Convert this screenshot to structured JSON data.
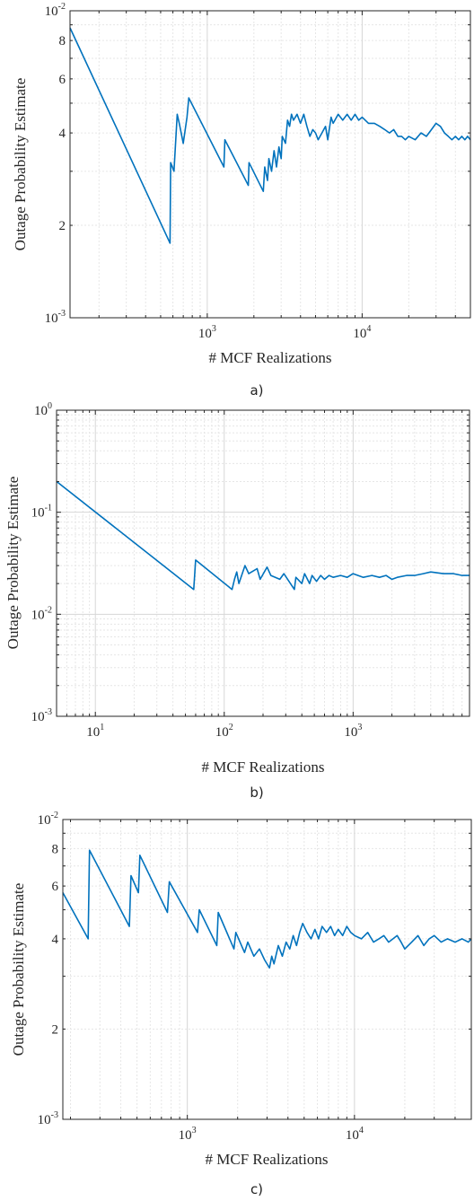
{
  "chart_data": [
    {
      "type": "line",
      "scale": "loglog",
      "caption": "a)",
      "xlabel": "# MCF Realizations",
      "ylabel": "Outage Probability Estimate",
      "xlim": [
        130,
        50000
      ],
      "ylim": [
        0.001,
        0.01
      ],
      "x_ticks": [
        {
          "v": 1000,
          "base": "10",
          "exp": "3"
        },
        {
          "v": 10000,
          "base": "10",
          "exp": "4"
        }
      ],
      "y_ticks": [
        {
          "v": 0.001,
          "base": "10",
          "exp": "-3"
        },
        {
          "v": 0.002,
          "base": "2",
          "exp": ""
        },
        {
          "v": 0.004,
          "base": "4",
          "exp": ""
        },
        {
          "v": 0.006,
          "base": "6",
          "exp": ""
        },
        {
          "v": 0.008,
          "base": "8",
          "exp": ""
        },
        {
          "v": 0.01,
          "base": "10",
          "exp": "-2"
        }
      ],
      "grid": true,
      "series": [
        {
          "color": "#0072bd",
          "x": [
            130,
            575,
            580,
            610,
            640,
            660,
            700,
            740,
            760,
            1280,
            1300,
            1840,
            1860,
            2300,
            2350,
            2450,
            2500,
            2600,
            2700,
            2800,
            2900,
            3000,
            3050,
            3200,
            3300,
            3400,
            3500,
            3600,
            3800,
            4000,
            4200,
            4400,
            4600,
            4800,
            5000,
            5200,
            5500,
            5800,
            6000,
            6300,
            6500,
            7000,
            7500,
            8000,
            8500,
            9000,
            9500,
            10000,
            11000,
            12000,
            13000,
            14000,
            15000,
            16000,
            17000,
            18000,
            19000,
            20000,
            22000,
            24000,
            26000,
            28000,
            30000,
            32000,
            34000,
            36000,
            38000,
            40000,
            42000,
            44000,
            46000,
            48000,
            50000
          ],
          "y": [
            0.0088,
            0.00175,
            0.0032,
            0.003,
            0.0046,
            0.0043,
            0.0037,
            0.0045,
            0.0052,
            0.0031,
            0.0038,
            0.0027,
            0.0032,
            0.00258,
            0.0031,
            0.0028,
            0.0033,
            0.003,
            0.0035,
            0.0031,
            0.0036,
            0.0033,
            0.0039,
            0.0037,
            0.0044,
            0.0042,
            0.0046,
            0.0044,
            0.0046,
            0.0043,
            0.0046,
            0.0042,
            0.0039,
            0.0041,
            0.004,
            0.0038,
            0.004,
            0.0042,
            0.0038,
            0.0045,
            0.0043,
            0.0046,
            0.0044,
            0.0046,
            0.0044,
            0.0046,
            0.0044,
            0.0045,
            0.0043,
            0.0043,
            0.0042,
            0.0041,
            0.004,
            0.0041,
            0.0039,
            0.0039,
            0.0038,
            0.0039,
            0.0038,
            0.004,
            0.0039,
            0.0041,
            0.0043,
            0.0042,
            0.004,
            0.0039,
            0.0038,
            0.0039,
            0.0038,
            0.0039,
            0.0038,
            0.0039,
            0.0038
          ]
        }
      ]
    },
    {
      "type": "line",
      "scale": "loglog",
      "caption": "b)",
      "xlabel": "# MCF Realizations",
      "ylabel": "Outage Probability Estimate",
      "xlim": [
        5,
        8000
      ],
      "ylim": [
        0.001,
        1
      ],
      "x_ticks": [
        {
          "v": 10,
          "base": "10",
          "exp": "1"
        },
        {
          "v": 100,
          "base": "10",
          "exp": "2"
        },
        {
          "v": 1000,
          "base": "10",
          "exp": "3"
        }
      ],
      "y_ticks": [
        {
          "v": 0.001,
          "base": "10",
          "exp": "-3"
        },
        {
          "v": 0.01,
          "base": "10",
          "exp": "-2"
        },
        {
          "v": 0.1,
          "base": "10",
          "exp": "-1"
        },
        {
          "v": 1,
          "base": "10",
          "exp": "0"
        }
      ],
      "grid": true,
      "series": [
        {
          "color": "#0072bd",
          "x": [
            5,
            58,
            60,
            115,
            120,
            125,
            130,
            145,
            155,
            180,
            190,
            215,
            230,
            270,
            290,
            350,
            360,
            400,
            420,
            460,
            480,
            520,
            560,
            600,
            650,
            700,
            800,
            900,
            1000,
            1200,
            1400,
            1600,
            1800,
            2000,
            2200,
            2600,
            3000,
            3500,
            4000,
            5000,
            6000,
            7000,
            8000
          ],
          "y": [
            0.2,
            0.0175,
            0.034,
            0.0175,
            0.022,
            0.026,
            0.02,
            0.03,
            0.025,
            0.028,
            0.022,
            0.029,
            0.024,
            0.022,
            0.025,
            0.0175,
            0.023,
            0.02,
            0.025,
            0.02,
            0.024,
            0.021,
            0.024,
            0.022,
            0.024,
            0.023,
            0.024,
            0.023,
            0.025,
            0.023,
            0.024,
            0.023,
            0.024,
            0.022,
            0.023,
            0.024,
            0.024,
            0.025,
            0.026,
            0.025,
            0.025,
            0.024,
            0.024
          ]
        }
      ]
    },
    {
      "type": "line",
      "scale": "loglog",
      "caption": "c)",
      "xlabel": "# MCF Realizations",
      "ylabel": "Outage Probability Estimate",
      "xlim": [
        180,
        50000
      ],
      "ylim": [
        0.001,
        0.01
      ],
      "x_ticks": [
        {
          "v": 1000,
          "base": "10",
          "exp": "3"
        },
        {
          "v": 10000,
          "base": "10",
          "exp": "4"
        }
      ],
      "y_ticks": [
        {
          "v": 0.001,
          "base": "10",
          "exp": "-3"
        },
        {
          "v": 0.002,
          "base": "2",
          "exp": ""
        },
        {
          "v": 0.004,
          "base": "4",
          "exp": ""
        },
        {
          "v": 0.006,
          "base": "6",
          "exp": ""
        },
        {
          "v": 0.008,
          "base": "8",
          "exp": ""
        },
        {
          "v": 0.01,
          "base": "10",
          "exp": "-2"
        }
      ],
      "grid": true,
      "series": [
        {
          "color": "#0072bd",
          "x": [
            180,
            255,
            260,
            450,
            460,
            510,
            520,
            760,
            780,
            1150,
            1180,
            1500,
            1530,
            1900,
            1950,
            2200,
            2300,
            2500,
            2700,
            2900,
            3100,
            3200,
            3300,
            3500,
            3700,
            3900,
            4100,
            4300,
            4500,
            4700,
            4900,
            5200,
            5500,
            5800,
            6100,
            6400,
            6800,
            7200,
            7600,
            8000,
            8500,
            9000,
            9500,
            10000,
            11000,
            12000,
            13000,
            14000,
            15000,
            16000,
            17000,
            18000,
            19000,
            20000,
            22000,
            24000,
            26000,
            28000,
            30000,
            33000,
            36000,
            40000,
            44000,
            48000,
            50000
          ],
          "y": [
            0.0057,
            0.004,
            0.0079,
            0.0044,
            0.0065,
            0.0057,
            0.0076,
            0.0049,
            0.0062,
            0.0042,
            0.005,
            0.0038,
            0.0049,
            0.0037,
            0.0042,
            0.0036,
            0.0039,
            0.0035,
            0.0037,
            0.0034,
            0.0032,
            0.0035,
            0.0033,
            0.0038,
            0.0035,
            0.0039,
            0.0037,
            0.0041,
            0.0038,
            0.0042,
            0.0045,
            0.0042,
            0.004,
            0.0043,
            0.004,
            0.0044,
            0.0042,
            0.0044,
            0.0041,
            0.0043,
            0.0041,
            0.0044,
            0.0042,
            0.0041,
            0.004,
            0.0042,
            0.0039,
            0.004,
            0.0041,
            0.0039,
            0.004,
            0.0041,
            0.0039,
            0.0037,
            0.0039,
            0.0041,
            0.0038,
            0.004,
            0.0041,
            0.0039,
            0.004,
            0.0039,
            0.004,
            0.0039,
            0.004
          ]
        }
      ]
    }
  ]
}
